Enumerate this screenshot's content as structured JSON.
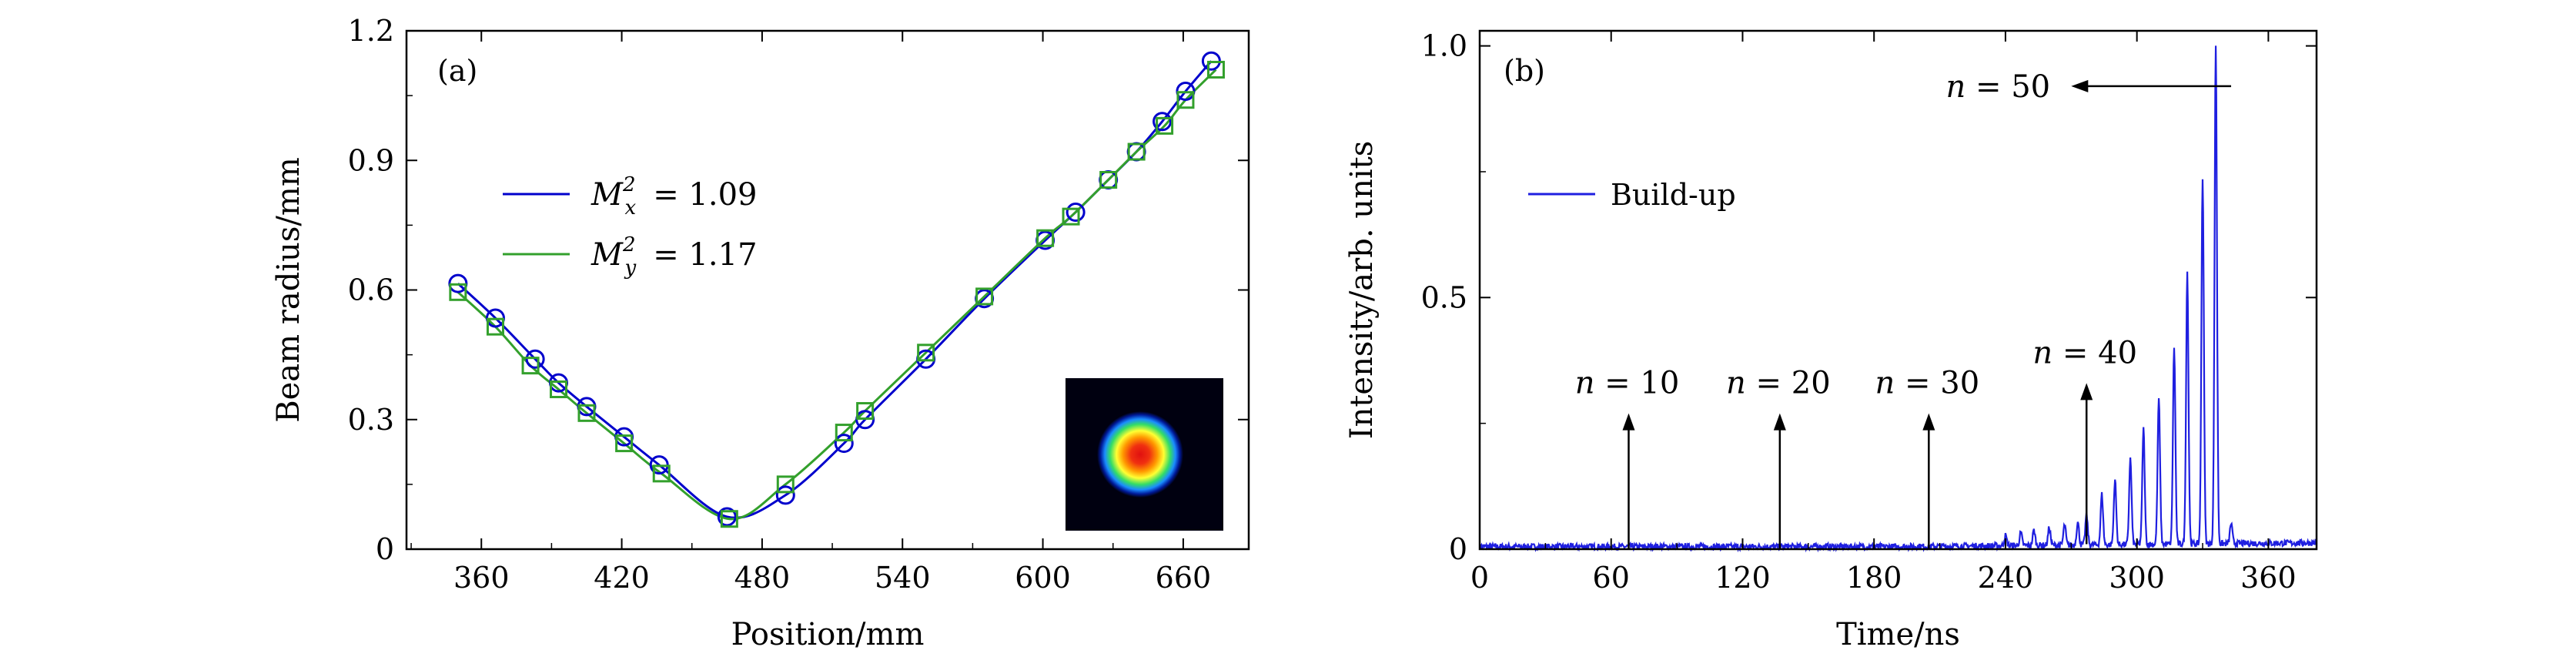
{
  "chart_data": [
    {
      "type": "line",
      "panel_label": "(a)",
      "xlabel": "Position/mm",
      "ylabel": "Beam radius/mm",
      "xlim": [
        328,
        688
      ],
      "ylim": [
        0,
        1.2
      ],
      "xticks": [
        360,
        420,
        480,
        540,
        600,
        660
      ],
      "yticks": [
        0,
        0.3,
        0.6,
        0.9,
        1.2
      ],
      "xtick_labels": [
        "360",
        "420",
        "480",
        "540",
        "600",
        "660"
      ],
      "ytick_labels": [
        "0",
        "0.3",
        "0.6",
        "0.9",
        "1.2"
      ],
      "legend_placement": "upper-left",
      "series": [
        {
          "name": "M_x^2 = 1.09",
          "legend_main": "M",
          "legend_sup": "2",
          "legend_sub": "x",
          "legend_value": "= 1.09",
          "color": "#0000cc",
          "marker": "circle",
          "x": [
            350,
            366,
            383,
            393,
            405,
            421,
            436,
            465,
            490,
            515,
            524,
            550,
            575,
            601,
            614,
            628,
            640,
            651,
            661,
            672
          ],
          "y": [
            0.615,
            0.535,
            0.44,
            0.385,
            0.33,
            0.26,
            0.195,
            0.075,
            0.125,
            0.245,
            0.3,
            0.44,
            0.58,
            0.715,
            0.78,
            0.855,
            0.92,
            0.99,
            1.06,
            1.13
          ]
        },
        {
          "name": "M_y^2 = 1.17",
          "legend_main": "M",
          "legend_sup": "2",
          "legend_sub": "y",
          "legend_value": "= 1.17",
          "color": "#33a02c",
          "marker": "square",
          "x": [
            350,
            366,
            381,
            393,
            405,
            421,
            437,
            466,
            490,
            515,
            524,
            550,
            575,
            601,
            612,
            628,
            640,
            652,
            661,
            674
          ],
          "y": [
            0.595,
            0.515,
            0.425,
            0.37,
            0.315,
            0.245,
            0.175,
            0.07,
            0.15,
            0.27,
            0.32,
            0.455,
            0.585,
            0.72,
            0.77,
            0.855,
            0.92,
            0.98,
            1.04,
            1.11
          ]
        }
      ],
      "inset": "beam-profile-image"
    },
    {
      "type": "line",
      "panel_label": "(b)",
      "xlabel": "Time/ns",
      "ylabel": "Intensity/arb. units",
      "xlim": [
        0,
        382
      ],
      "ylim": [
        0,
        1.03
      ],
      "xticks": [
        0,
        60,
        120,
        180,
        240,
        300,
        360
      ],
      "yticks": [
        0,
        0.5,
        1.0
      ],
      "xtick_labels": [
        "0",
        "60",
        "120",
        "180",
        "240",
        "300",
        "360"
      ],
      "ytick_labels": [
        "0",
        "0.5",
        "1.0"
      ],
      "legend_placement": "upper-left",
      "series": [
        {
          "name": "Build-up",
          "color": "#1f1fe0",
          "pulse_times": [
            277,
            284,
            290,
            297,
            303,
            310,
            317,
            323,
            330,
            336,
            343
          ],
          "pulse_peaks": [
            0.06,
            0.1,
            0.13,
            0.17,
            0.23,
            0.29,
            0.39,
            0.54,
            0.73,
            0.99,
            0.04
          ],
          "small_pulse_times": [
            240,
            247,
            253,
            260,
            267,
            273
          ],
          "small_pulse_peaks": [
            0.02,
            0.025,
            0.03,
            0.035,
            0.04,
            0.045
          ],
          "baseline": 0.005
        }
      ],
      "annotations": [
        {
          "label": "n = 10",
          "pre": "n",
          "post": " = 10",
          "arrow_x": 68,
          "arrow_from": 0.0,
          "arrow_to": 0.27,
          "direction": "up"
        },
        {
          "label": "n = 20",
          "pre": "n",
          "post": " = 20",
          "arrow_x": 137,
          "arrow_from": 0.0,
          "arrow_to": 0.27,
          "direction": "up"
        },
        {
          "label": "n = 30",
          "pre": "n",
          "post": " = 30",
          "arrow_x": 205,
          "arrow_from": 0.0,
          "arrow_to": 0.27,
          "direction": "up"
        },
        {
          "label": "n = 40",
          "pre": "n",
          "post": " = 40",
          "arrow_x": 277,
          "arrow_from": 0.01,
          "arrow_to": 0.33,
          "direction": "up"
        },
        {
          "label": "n = 50",
          "pre": "n",
          "post": " = 50",
          "arrow_y": 0.92,
          "arrow_from_x": 343,
          "arrow_to_x": 270,
          "direction": "left"
        }
      ]
    }
  ]
}
